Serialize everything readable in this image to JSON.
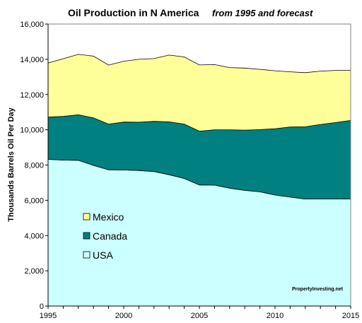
{
  "chart_data": {
    "type": "area",
    "stacked": true,
    "title": "Oil Production in N America",
    "subtitle": "from 1995 and forecast",
    "xlabel": "",
    "ylabel": "Thousands Barrels Oil Per Day",
    "xlim": [
      1995,
      2015
    ],
    "ylim": [
      0,
      16000
    ],
    "x_ticks": [
      "1995",
      "2000",
      "2005",
      "2010",
      "2015"
    ],
    "y_ticks": [
      "0",
      "2,000",
      "4,000",
      "6,000",
      "8,000",
      "10,000",
      "12,000",
      "14,000",
      "16,000"
    ],
    "grid": false,
    "legend_position": "bottom-left",
    "x": [
      1995,
      1996,
      1997,
      1998,
      1999,
      2000,
      2001,
      2002,
      2003,
      2004,
      2005,
      2006,
      2007,
      2008,
      2009,
      2010,
      2011,
      2012,
      2013,
      2014,
      2015
    ],
    "series": [
      {
        "name": "USA",
        "color": "#ccffff",
        "values": [
          8320,
          8280,
          8270,
          7980,
          7730,
          7720,
          7690,
          7630,
          7450,
          7240,
          6870,
          6860,
          6690,
          6560,
          6480,
          6300,
          6180,
          6070,
          6070,
          6070,
          6070
        ]
      },
      {
        "name": "Canada",
        "color": "#008080",
        "values": [
          2400,
          2480,
          2580,
          2700,
          2590,
          2720,
          2740,
          2850,
          3000,
          3080,
          3050,
          3140,
          3310,
          3420,
          3530,
          3760,
          3980,
          4100,
          4230,
          4340,
          4460
        ]
      },
      {
        "name": "Mexico",
        "color": "#ffff99",
        "values": [
          3070,
          3270,
          3430,
          3500,
          3350,
          3450,
          3570,
          3560,
          3790,
          3810,
          3760,
          3700,
          3530,
          3520,
          3420,
          3290,
          3130,
          3070,
          3030,
          2960,
          2840
        ]
      }
    ],
    "watermark": "PropertyInvesting.net"
  }
}
